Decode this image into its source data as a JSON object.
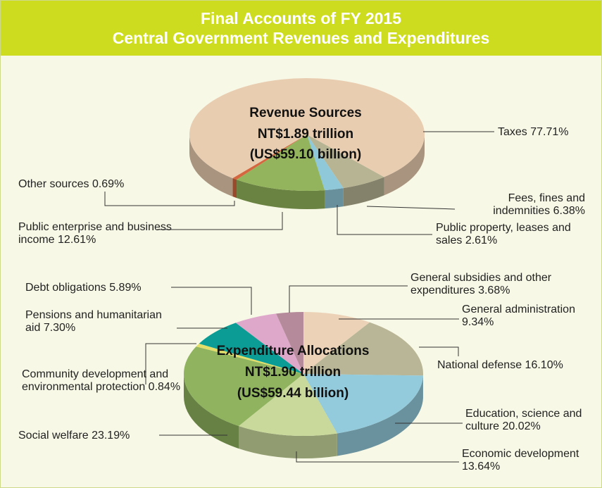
{
  "header": {
    "title": "Final Accounts of FY 2015",
    "subtitle": "Central Government Revenues and Expenditures"
  },
  "chart_data": [
    {
      "type": "pie",
      "title": "Revenue Sources",
      "total": "NT$1.89 trillion",
      "total_usd": "(US$59.10 billion)",
      "categories": [
        "Fees, fines and indemnities",
        "Public property, leases and sales",
        "Public enterprise and business income",
        "Other sources",
        "Taxes"
      ],
      "values": [
        6.38,
        2.61,
        12.61,
        0.69,
        77.71
      ],
      "value_labels": [
        "6.38%",
        "2.61%",
        "12.61%",
        "0.69%",
        "77.71%"
      ],
      "colors": [
        "#b7b494",
        "#8fc8d8",
        "#93b45c",
        "#d4673f",
        "#e9cdb1"
      ]
    },
    {
      "type": "pie",
      "title": "Expenditure Allocations",
      "total": "NT$1.90 trillion",
      "total_usd": "(US$59.44 billion)",
      "categories": [
        "General administration",
        "National defense",
        "Education, science and culture",
        "Economic development",
        "Social welfare",
        "Community development and environmental protection",
        "Pensions and humanitarian aid",
        "Debt obligations",
        "General subsidies and other expenditures"
      ],
      "values": [
        9.34,
        16.1,
        20.02,
        13.64,
        23.19,
        0.84,
        7.3,
        5.89,
        3.68
      ],
      "value_labels": [
        "9.34%",
        "16.10%",
        "20.02%",
        "13.64%",
        "23.19%",
        "0.84%",
        "7.30%",
        "5.89%",
        "3.68%"
      ],
      "colors": [
        "#ecd3b8",
        "#b8b696",
        "#93cbdc",
        "#c9d99c",
        "#8fb35e",
        "#e2de69",
        "#0b9d95",
        "#dea8ca",
        "#b58b9b"
      ]
    }
  ]
}
